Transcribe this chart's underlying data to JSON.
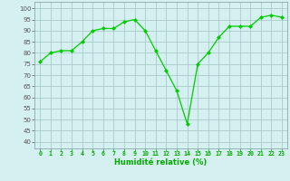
{
  "x": [
    0,
    1,
    2,
    3,
    4,
    5,
    6,
    7,
    8,
    9,
    10,
    11,
    12,
    13,
    14,
    15,
    16,
    17,
    18,
    19,
    20,
    21,
    22,
    23
  ],
  "y": [
    76,
    80,
    81,
    81,
    85,
    90,
    91,
    91,
    94,
    95,
    90,
    81,
    72,
    63,
    48,
    75,
    80,
    87,
    92,
    92,
    92,
    96,
    97,
    96
  ],
  "line_color": "#00cc00",
  "marker_color": "#00cc00",
  "bg_color": "#d5f0f0",
  "grid_color": "#aacccc",
  "xlabel": "Humidité relative (%)",
  "xlabel_color": "#00aa00",
  "yticks": [
    40,
    45,
    50,
    55,
    60,
    65,
    70,
    75,
    80,
    85,
    90,
    95,
    100
  ],
  "ylabel_left": [
    "40",
    "45",
    "50",
    "55",
    "60",
    "65",
    "70",
    "75",
    "80",
    "85",
    "90",
    "95",
    "100"
  ],
  "ylim": [
    37,
    103
  ],
  "xlim": [
    -0.5,
    23.5
  ]
}
